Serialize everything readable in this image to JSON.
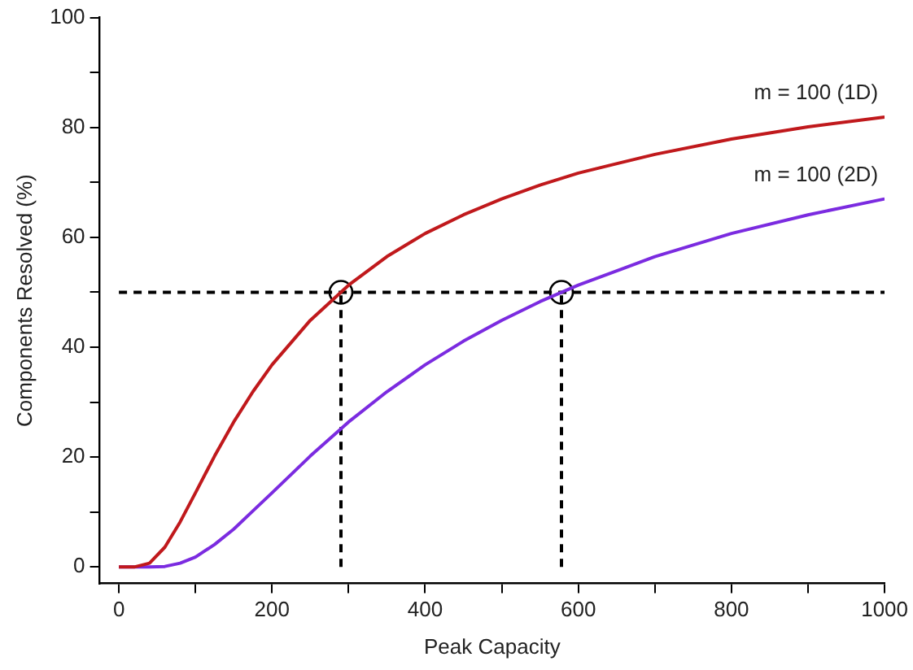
{
  "chart_data": {
    "type": "line",
    "xlabel": "Peak Capacity",
    "ylabel": "Components Resolved (%)",
    "xlim": [
      -25,
      1000
    ],
    "ylim": [
      -3,
      100
    ],
    "xticks": [
      0,
      {
        "value": 100,
        "label": null
      },
      200,
      {
        "value": 300,
        "label": null
      },
      400,
      {
        "value": 500,
        "label": null
      },
      600,
      {
        "value": 700,
        "label": null
      },
      800,
      {
        "value": 900,
        "label": null
      },
      1000
    ],
    "yticks": [
      0,
      {
        "value": 10,
        "label": null
      },
      20,
      {
        "value": 30,
        "label": null
      },
      40,
      {
        "value": 50,
        "label": null
      },
      60,
      {
        "value": 70,
        "label": null
      },
      80,
      {
        "value": 90,
        "label": null
      },
      100
    ],
    "grid": false,
    "legend": false,
    "marker": "none",
    "series": [
      {
        "name": "m = 100 (1D)",
        "color": "#c0191c",
        "line_style": "solid",
        "x": [
          0,
          20,
          40,
          60,
          80,
          100,
          125,
          150,
          175,
          200,
          250,
          300,
          350,
          400,
          450,
          500,
          550,
          600,
          700,
          800,
          900,
          1000
        ],
        "values": [
          0,
          0,
          0.7,
          3.6,
          8.2,
          13.5,
          20.2,
          26.4,
          31.9,
          36.8,
          44.9,
          51.3,
          56.5,
          60.7,
          64.1,
          67.0,
          69.5,
          71.7,
          75.1,
          77.9,
          80.1,
          81.9
        ]
      },
      {
        "name": "m = 100 (2D)",
        "color": "#7b2be0",
        "line_style": "solid",
        "x": [
          0,
          20,
          40,
          60,
          80,
          100,
          125,
          150,
          175,
          200,
          250,
          300,
          350,
          400,
          450,
          500,
          550,
          600,
          700,
          800,
          900,
          1000
        ],
        "values": [
          0,
          0,
          0,
          0.1,
          0.7,
          1.8,
          4.1,
          6.9,
          10.2,
          13.5,
          20.2,
          26.4,
          31.9,
          36.8,
          41.1,
          44.9,
          48.3,
          51.3,
          56.5,
          60.7,
          64.1,
          67.0
        ]
      },
      {
        "type": "line",
        "color": "#000000",
        "line_style": "dashed",
        "x": [
          0,
          1000
        ],
        "values": [
          50,
          50
        ]
      },
      {
        "type": "line",
        "color": "#000000",
        "line_style": "dashed",
        "x": [
          290,
          290
        ],
        "values": [
          0,
          50
        ]
      },
      {
        "type": "line",
        "color": "#000000",
        "line_style": "dashed",
        "x": [
          578,
          578
        ],
        "values": [
          0,
          50
        ]
      },
      {
        "type": "scatter",
        "color": "#000000",
        "marker": "circle",
        "x": [
          290,
          578
        ],
        "values": [
          50,
          50
        ]
      }
    ]
  }
}
